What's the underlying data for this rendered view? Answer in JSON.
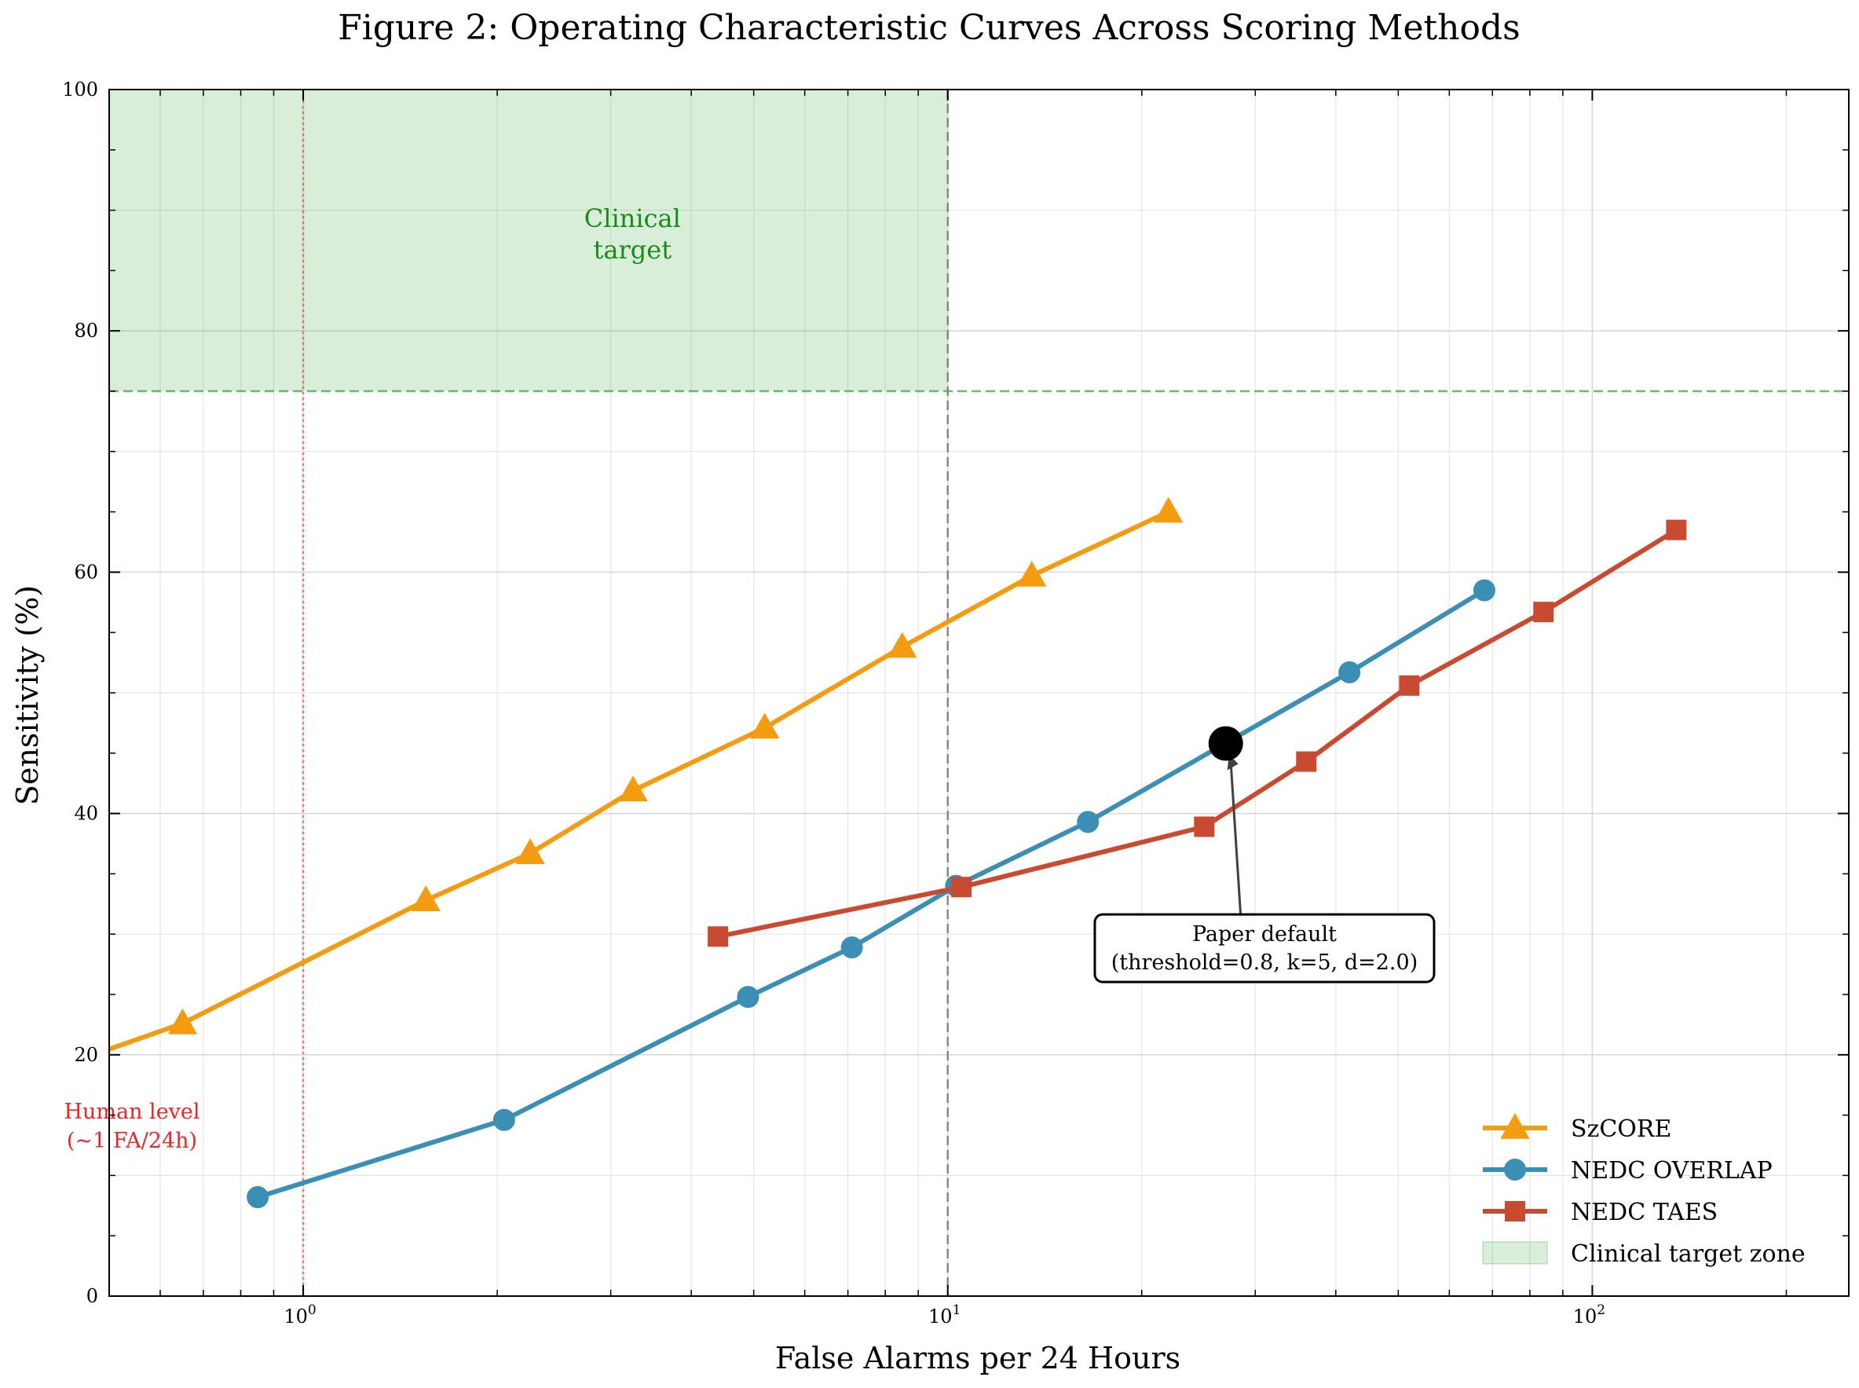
{
  "chart_data": {
    "type": "line",
    "title": "Figure 2: Operating Characteristic Curves Across Scoring Methods",
    "xlabel": "False Alarms per 24 Hours",
    "ylabel": "Sensitivity (%)",
    "xscale": "log",
    "xlim": [
      0.5,
      250
    ],
    "ylim": [
      0,
      100
    ],
    "x_ticks": [
      {
        "value": 1,
        "base": "10",
        "exp": "0"
      },
      {
        "value": 10,
        "base": "10",
        "exp": "1"
      },
      {
        "value": 100,
        "base": "10",
        "exp": "2"
      }
    ],
    "y_ticks": [
      0,
      20,
      40,
      60,
      80,
      100
    ],
    "grid": true,
    "legend_position": "bottom-right",
    "series": [
      {
        "name": "SzCORE",
        "color": "#f39c12",
        "marker": "triangle",
        "points": [
          [
            0.45,
            19.6
          ],
          [
            0.65,
            22.6
          ],
          [
            1.55,
            32.8
          ],
          [
            2.25,
            36.7
          ],
          [
            3.25,
            41.9
          ],
          [
            5.2,
            47.1
          ],
          [
            8.5,
            53.8
          ],
          [
            13.5,
            59.7
          ],
          [
            22.0,
            65.0
          ]
        ]
      },
      {
        "name": "NEDC OVERLAP",
        "color": "#3b8fb4",
        "marker": "circle",
        "points": [
          [
            0.85,
            8.2
          ],
          [
            2.05,
            14.6
          ],
          [
            4.9,
            24.8
          ],
          [
            7.1,
            28.9
          ],
          [
            10.3,
            34.0
          ],
          [
            16.5,
            39.3
          ],
          [
            42.0,
            51.7
          ],
          [
            68.0,
            58.5
          ]
        ]
      },
      {
        "name": "NEDC TAES",
        "color": "#c84b31",
        "marker": "square",
        "points": [
          [
            4.4,
            29.8
          ],
          [
            10.5,
            33.9
          ],
          [
            25.0,
            38.9
          ],
          [
            36.0,
            44.3
          ],
          [
            52.0,
            50.6
          ],
          [
            84.0,
            56.7
          ],
          [
            135.0,
            63.5
          ]
        ]
      }
    ],
    "zone": {
      "name": "Clinical target zone",
      "label_line1": "Clinical",
      "label_line2": "target",
      "x_max": 10,
      "y_min": 75,
      "color": "#2ca02c"
    },
    "human_level": {
      "x": 1,
      "label_line1": "Human level",
      "label_line2": "(~1 FA/24h)",
      "color": "#e8262a"
    },
    "annotation": {
      "line1": "Paper default",
      "line2": "(threshold=0.8, k=5, d=2.0)",
      "point": [
        27.0,
        45.8
      ],
      "text_anchor": [
        31.0,
        28.9
      ]
    }
  }
}
